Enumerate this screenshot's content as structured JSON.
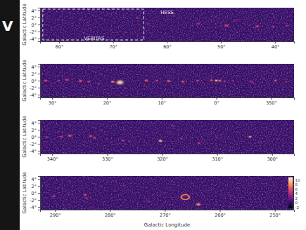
{
  "slide_text": "V",
  "chart_data": {
    "type": "heatmap",
    "x_label": "Galactic Longitude",
    "y_label": "Galactic Latitude",
    "ylim": [
      -4.8,
      4.8
    ],
    "yticks": [
      {
        "value": -4,
        "label": "-4°"
      },
      {
        "value": -2,
        "label": "-2°"
      },
      {
        "value": 0,
        "label": "0°"
      },
      {
        "value": 2,
        "label": "2°"
      },
      {
        "value": 4,
        "label": "4°"
      }
    ],
    "background_value": 0,
    "colorbar": {
      "range": [
        -2.5,
        11
      ],
      "ticks": [
        10,
        8,
        6,
        4,
        2,
        0,
        -2
      ]
    },
    "panels": [
      {
        "xlim": [
          83.5,
          36.5
        ],
        "xticks": [
          {
            "value": 80,
            "label": "80°"
          },
          {
            "value": 70,
            "label": "70°"
          },
          {
            "value": 60,
            "label": "60°"
          },
          {
            "value": 50,
            "label": "50°"
          },
          {
            "value": 40,
            "label": "40°"
          }
        ],
        "survey_box": {
          "x": [
            83,
            64.3
          ],
          "y": [
            -4.4,
            4.4
          ]
        },
        "annotations": [
          {
            "text": "HESS",
            "x": 60,
            "y": 3.4
          },
          {
            "text": "VERITAS",
            "x": 73.5,
            "y": -3.9
          }
        ],
        "sources": [
          {
            "l": 76,
            "b": 1.5,
            "value": 3,
            "radius": 0.4
          },
          {
            "l": 74.8,
            "b": 0.6,
            "value": 3,
            "radius": 0.4
          },
          {
            "l": 65.5,
            "b": 2,
            "value": 3,
            "radius": 0.5
          },
          {
            "l": 63.5,
            "b": 0.2,
            "value": 3,
            "radius": 0.5
          },
          {
            "l": 54.2,
            "b": 0.3,
            "value": 4,
            "radius": 0.6
          },
          {
            "l": 51,
            "b": 2.2,
            "value": 3,
            "radius": 0.4
          },
          {
            "l": 49,
            "b": -0.3,
            "value": 5,
            "radius": 0.7
          },
          {
            "l": 47.5,
            "b": 1,
            "value": 3,
            "radius": 0.4
          },
          {
            "l": 43.3,
            "b": -0.5,
            "value": 5,
            "radius": 0.6
          },
          {
            "l": 40.4,
            "b": -0.6,
            "value": 4,
            "radius": 0.5
          },
          {
            "l": 37.8,
            "b": -0.3,
            "value": 4,
            "radius": 0.5
          }
        ]
      },
      {
        "xlim": [
          32.2,
          -14.2
        ],
        "xticks": [
          {
            "value": 30,
            "label": "30°"
          },
          {
            "value": 20,
            "label": "20°"
          },
          {
            "value": 10,
            "label": "10°"
          },
          {
            "value": 0,
            "label": "0°"
          },
          {
            "value": -10,
            "label": "350°"
          }
        ],
        "sources": [
          {
            "l": 31.2,
            "b": 0,
            "value": 5,
            "radius": 0.6
          },
          {
            "l": 28.8,
            "b": 0,
            "value": 4,
            "radius": 0.5
          },
          {
            "l": 27.3,
            "b": 0.2,
            "value": 5,
            "radius": 0.6
          },
          {
            "l": 24.8,
            "b": -0.1,
            "value": 6,
            "radius": 0.6
          },
          {
            "l": 23.3,
            "b": -0.3,
            "value": 5,
            "radius": 0.5
          },
          {
            "l": 21.5,
            "b": -0.9,
            "value": 4,
            "radius": 0.4
          },
          {
            "l": 18.9,
            "b": -0.3,
            "value": 7,
            "radius": 0.6
          },
          {
            "l": 17.6,
            "b": -0.5,
            "value": 10,
            "radius": 1.1
          },
          {
            "l": 12.8,
            "b": 0,
            "value": 6,
            "radius": 0.6
          },
          {
            "l": 10.9,
            "b": 0,
            "value": 5,
            "radius": 0.5
          },
          {
            "l": 8.7,
            "b": -0.1,
            "value": 6,
            "radius": 0.6
          },
          {
            "l": 6.1,
            "b": -0.3,
            "value": 6,
            "radius": 0.5
          },
          {
            "l": 3.4,
            "b": 0,
            "value": 5,
            "radius": 0.5
          },
          {
            "l": 0.9,
            "b": 0.1,
            "value": 6,
            "radius": 0.5
          },
          {
            "l": 0,
            "b": 0,
            "value": 9,
            "radius": 0.5
          },
          {
            "l": -0.6,
            "b": 0,
            "value": 7,
            "radius": 0.5
          },
          {
            "l": -1.5,
            "b": -0.2,
            "value": 5,
            "radius": 0.4
          },
          {
            "l": -3,
            "b": 0,
            "value": 4,
            "radius": 0.4
          },
          {
            "l": -6.5,
            "b": -0.4,
            "value": 4,
            "radius": 0.5
          },
          {
            "l": -8.7,
            "b": 0.6,
            "value": 3,
            "radius": 0.4
          },
          {
            "l": -10.8,
            "b": 0,
            "value": 6,
            "radius": 0.5
          },
          {
            "l": -12.8,
            "b": -0.3,
            "value": 4,
            "radius": 0.4
          }
        ]
      },
      {
        "xlim": [
          342.2,
          296
        ],
        "xticks": [
          {
            "value": 340,
            "label": "340°"
          },
          {
            "value": 330,
            "label": "330°"
          },
          {
            "value": 320,
            "label": "320°"
          },
          {
            "value": 310,
            "label": "310°"
          },
          {
            "value": 300,
            "label": "300°"
          }
        ],
        "sources": [
          {
            "l": 341,
            "b": -0.2,
            "value": 4,
            "radius": 0.5
          },
          {
            "l": 338.3,
            "b": 0,
            "value": 5,
            "radius": 0.5
          },
          {
            "l": 336.8,
            "b": 0.3,
            "value": 6,
            "radius": 0.6
          },
          {
            "l": 333,
            "b": 0.2,
            "value": 6,
            "radius": 0.5
          },
          {
            "l": 332.3,
            "b": -0.3,
            "value": 5,
            "radius": 0.5
          },
          {
            "l": 330,
            "b": -0.6,
            "value": 3,
            "radius": 0.4
          },
          {
            "l": 327.1,
            "b": -1.1,
            "value": 5,
            "radius": 0.5
          },
          {
            "l": 326,
            "b": -1.3,
            "value": 4,
            "radius": 0.4
          },
          {
            "l": 320.3,
            "b": -1.2,
            "value": 9,
            "radius": 0.6
          },
          {
            "l": 318,
            "b": 3,
            "value": 3,
            "radius": 0.4
          },
          {
            "l": 316.5,
            "b": -0.5,
            "value": 4,
            "radius": 0.4
          },
          {
            "l": 313.3,
            "b": -1.8,
            "value": 5,
            "radius": 0.5
          },
          {
            "l": 310,
            "b": -0.3,
            "value": 3,
            "radius": 0.4
          },
          {
            "l": 304,
            "b": 0,
            "value": 8,
            "radius": 0.5
          },
          {
            "l": 302,
            "b": -1.5,
            "value": 3,
            "radius": 0.4
          },
          {
            "l": 299,
            "b": -0.6,
            "value": 3,
            "radius": 0.4
          }
        ]
      },
      {
        "xlim": [
          292.7,
          246.5
        ],
        "xticks": [
          {
            "value": 290,
            "label": "290°"
          },
          {
            "value": 280,
            "label": "280°"
          },
          {
            "value": 270,
            "label": "270°"
          },
          {
            "value": 260,
            "label": "260°"
          },
          {
            "value": 250,
            "label": "250°"
          }
        ],
        "sources": [
          {
            "l": 290.2,
            "b": -1,
            "value": 5,
            "radius": 0.5
          },
          {
            "l": 287.5,
            "b": -0.5,
            "value": 3,
            "radius": 0.4
          },
          {
            "l": 284.5,
            "b": -0.6,
            "value": 6,
            "radius": 0.5
          },
          {
            "l": 284.2,
            "b": -1.5,
            "value": 5,
            "radius": 0.4
          },
          {
            "l": 279,
            "b": 0.5,
            "value": 3,
            "radius": 0.4
          },
          {
            "l": 273,
            "b": -2.5,
            "value": 3,
            "radius": 0.5
          },
          {
            "l": 270,
            "b": 0,
            "value": 3,
            "radius": 0.4
          },
          {
            "l": 266.3,
            "b": -1.2,
            "value": 7,
            "radius": 1.0,
            "marker": "ring"
          },
          {
            "l": 263.9,
            "b": -3.3,
            "value": 8,
            "radius": 0.7
          },
          {
            "l": 258,
            "b": -1,
            "value": 3,
            "radius": 0.4
          }
        ]
      }
    ]
  }
}
